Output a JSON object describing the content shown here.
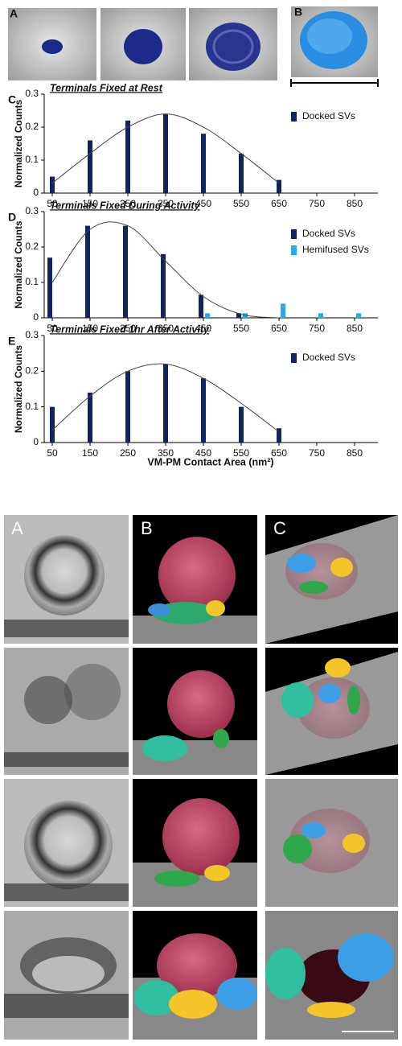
{
  "panel_labels": {
    "top": [
      "A",
      "B"
    ],
    "bottom": [
      "A",
      "B",
      "C"
    ]
  },
  "x_axis_label": "VM-PM Contact Area (nm²)",
  "chart_data": [
    {
      "type": "bar",
      "panel": "C",
      "title": "Terminals Fixed at Rest",
      "y_label": "Normalized Counts",
      "categories": [
        "50",
        "150",
        "250",
        "350",
        "450",
        "550",
        "650",
        "750",
        "850"
      ],
      "series": [
        {
          "name": "Docked SVs",
          "color": "#14235e",
          "values": [
            0.05,
            0.16,
            0.22,
            0.24,
            0.18,
            0.12,
            0.04,
            null,
            null
          ]
        }
      ],
      "fit": {
        "color": "#444",
        "values": [
          0.03,
          0.12,
          0.2,
          0.24,
          0.2,
          0.12,
          0.03,
          null,
          null
        ]
      },
      "ylim": [
        0,
        0.3
      ],
      "yticks": [
        0,
        0.1,
        0.2,
        0.3
      ],
      "legend": "upper right"
    },
    {
      "type": "bar",
      "panel": "D",
      "title": "Terminals Fixed During Activity",
      "y_label": "Normalized Counts",
      "categories": [
        "50",
        "150",
        "250",
        "350",
        "450",
        "550",
        "650",
        "750",
        "850"
      ],
      "series": [
        {
          "name": "Docked SVs",
          "color": "#14235e",
          "values": [
            0.17,
            0.26,
            0.26,
            0.18,
            0.065,
            0.013,
            null,
            null,
            null
          ]
        },
        {
          "name": "Hemifused SVs",
          "color": "#29abe2",
          "values": [
            null,
            null,
            null,
            null,
            0.013,
            0.013,
            0.04,
            0.013,
            0.013
          ]
        }
      ],
      "fit": {
        "color": "#444",
        "values": [
          0.1,
          0.25,
          0.26,
          0.16,
          0.06,
          0.01,
          0.0,
          null,
          null
        ]
      },
      "ylim": [
        0,
        0.3
      ],
      "yticks": [
        0,
        0.1,
        0.2,
        0.3
      ],
      "legend": "upper right"
    },
    {
      "type": "bar",
      "panel": "E",
      "title": "Terminals Fixed 1hr After Activity",
      "y_label": "Normalized Counts",
      "categories": [
        "50",
        "150",
        "250",
        "350",
        "450",
        "550",
        "650",
        "750",
        "850"
      ],
      "series": [
        {
          "name": "Docked SVs",
          "color": "#14235e",
          "values": [
            0.1,
            0.14,
            0.2,
            0.22,
            0.18,
            0.1,
            0.04,
            null,
            null
          ]
        }
      ],
      "fit": {
        "color": "#444",
        "values": [
          0.035,
          0.13,
          0.2,
          0.22,
          0.18,
          0.11,
          0.03,
          null,
          null
        ]
      },
      "ylim": [
        0,
        0.3
      ],
      "yticks": [
        0,
        0.1,
        0.2,
        0.3
      ],
      "legend": "upper right"
    }
  ]
}
